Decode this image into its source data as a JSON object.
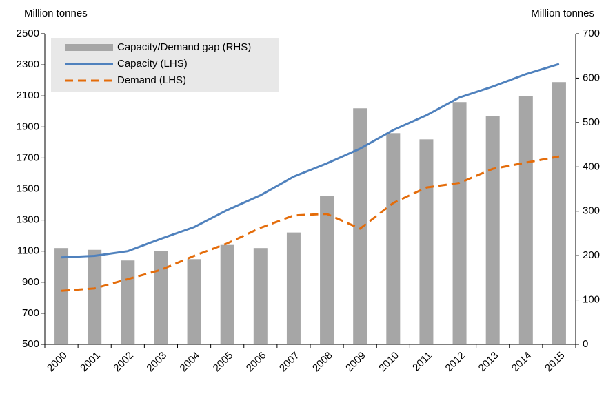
{
  "chart_data": {
    "type": "bar_line",
    "y_label": "Million tonnes",
    "y2_label": "Million tonnes",
    "categories": [
      "2000",
      "2001",
      "2002",
      "2003",
      "2004",
      "2005",
      "2006",
      "2007",
      "2008",
      "2009",
      "2010",
      "2011",
      "2012",
      "2013",
      "2014",
      "2015"
    ],
    "series": [
      {
        "name": "Capacity/Demand gap (RHS)",
        "type": "bar",
        "axis": "y2",
        "color": "#a6a6a6",
        "values": [
          217,
          213,
          189,
          210,
          192,
          224,
          217,
          252,
          334,
          532,
          476,
          462,
          546,
          514,
          560,
          591
        ]
      },
      {
        "name": "Capacity (LHS)",
        "type": "line",
        "color": "#4f81bd",
        "dashed": false,
        "values": [
          1060,
          1070,
          1100,
          1180,
          1255,
          1365,
          1460,
          1580,
          1665,
          1760,
          1880,
          1975,
          2090,
          2160,
          2240,
          2305
        ]
      },
      {
        "name": "Demand (LHS)",
        "type": "line",
        "color": "#e46c0a",
        "dashed": true,
        "values": [
          845,
          860,
          920,
          980,
          1070,
          1150,
          1250,
          1330,
          1340,
          1245,
          1410,
          1510,
          1540,
          1630,
          1670,
          1710
        ]
      }
    ],
    "ylim": [
      500,
      2500
    ],
    "yticks": [
      500,
      700,
      900,
      1100,
      1300,
      1500,
      1700,
      1900,
      2100,
      2300,
      2500
    ],
    "y2lim": [
      0,
      700
    ],
    "y2ticks": [
      0,
      100,
      200,
      300,
      400,
      500,
      600,
      700
    ],
    "legend": "upper left",
    "grid": false
  }
}
